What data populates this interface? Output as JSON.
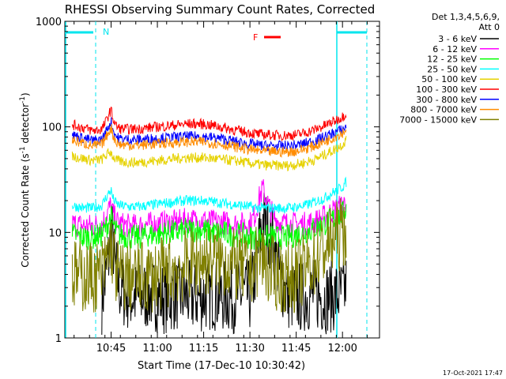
{
  "chart_data": {
    "type": "line",
    "title": "RHESSI Observing Summary Count Rates, Corrected",
    "xlabel": "Start Time (17-Dec-10 10:30:42)",
    "ylabel": "Corrected Count Rate (s",
    "ylabel_sup1": "-1",
    "ylabel_mid": " detector",
    "ylabel_sup2": "-1",
    "ylabel_end": ")",
    "y_scale": "log",
    "ylim": [
      1,
      1000
    ],
    "xlim_minutes": [
      10.5,
      12.2
    ],
    "y_ticks": [
      {
        "value": 1,
        "label": "1"
      },
      {
        "value": 10,
        "label": "10"
      },
      {
        "value": 100,
        "label": "100"
      },
      {
        "value": 1000,
        "label": "1000"
      }
    ],
    "x_ticks": [
      {
        "value": 10.75,
        "label": "10:45"
      },
      {
        "value": 11.0,
        "label": "11:00"
      },
      {
        "value": 11.25,
        "label": "11:15"
      },
      {
        "value": 11.5,
        "label": "11:30"
      },
      {
        "value": 11.75,
        "label": "11:45"
      },
      {
        "value": 12.0,
        "label": "12:00"
      }
    ],
    "legend_title_1": "Det 1,3,4,5,6,9,",
    "legend_title_2": "Att 0",
    "legend_position": "right",
    "annotations": {
      "night_label": "N",
      "flare_label": "F",
      "flare_color": "#ff0000",
      "night_color": "#00e5ee"
    },
    "footer_timestamp": "17-Oct-2021 17:47",
    "series": [
      {
        "name": "3 - 6 keV",
        "color": "#000000",
        "x": [
          10.7,
          10.72,
          10.74,
          10.75,
          10.76,
          10.77,
          10.8,
          10.85,
          10.9,
          10.95,
          11.0,
          11.05,
          11.1,
          11.15,
          11.2,
          11.25,
          11.3,
          11.35,
          11.4,
          11.45,
          11.5,
          11.52,
          11.55,
          11.57,
          11.6,
          11.63,
          11.66,
          11.7,
          11.75,
          11.8,
          11.85,
          11.9,
          11.95,
          12.0,
          12.02
        ],
        "y": [
          2.4,
          3.5,
          6.5,
          10,
          8.5,
          5,
          2.8,
          2.5,
          2.4,
          2.6,
          2.5,
          2.4,
          2.6,
          2.5,
          2.4,
          2.5,
          2.6,
          2.5,
          2.4,
          2.6,
          2.5,
          3.5,
          8,
          13,
          11,
          7,
          4,
          2.6,
          2.4,
          2.5,
          2.6,
          2.4,
          2.5,
          2.6,
          3
        ]
      },
      {
        "name": "6 - 12 keV",
        "color": "#ff00ff",
        "x": [
          10.54,
          10.6,
          10.65,
          10.7,
          10.72,
          10.74,
          10.75,
          10.76,
          10.78,
          10.8,
          10.85,
          10.9,
          10.95,
          11.0,
          11.05,
          11.1,
          11.15,
          11.2,
          11.25,
          11.3,
          11.35,
          11.4,
          11.45,
          11.5,
          11.53,
          11.55,
          11.57,
          11.6,
          11.63,
          11.66,
          11.7,
          11.75,
          11.8,
          11.85,
          11.9,
          11.95,
          12.0,
          12.02
        ],
        "y": [
          12,
          11.5,
          11.5,
          12,
          14,
          17,
          18,
          15,
          12.5,
          12,
          11.5,
          11.5,
          12,
          12,
          12.5,
          12.5,
          13,
          13,
          13,
          12.5,
          12.5,
          12,
          12,
          12,
          15,
          21,
          26,
          18,
          14,
          12.5,
          12,
          12,
          12,
          12.5,
          14,
          16,
          18,
          20
        ]
      },
      {
        "name": "12 - 25 keV",
        "color": "#00ff00",
        "x": [
          10.54,
          10.6,
          10.65,
          10.7,
          10.72,
          10.74,
          10.75,
          10.76,
          10.78,
          10.8,
          10.85,
          10.9,
          10.95,
          11.0,
          11.05,
          11.1,
          11.15,
          11.2,
          11.25,
          11.3,
          11.35,
          11.4,
          11.45,
          11.5,
          11.55,
          11.6,
          11.65,
          11.7,
          11.75,
          11.8,
          11.85,
          11.9,
          11.95,
          12.0,
          12.02
        ],
        "y": [
          9.5,
          9,
          9,
          9.5,
          11,
          13,
          14,
          12,
          10,
          9.5,
          9,
          9,
          9.5,
          9.5,
          10,
          10,
          10.5,
          10.5,
          10.5,
          10,
          10,
          9.5,
          9.5,
          9,
          9,
          9,
          9,
          9,
          9.5,
          10,
          11,
          12,
          13.5,
          15,
          17
        ]
      },
      {
        "name": "25 - 50 keV",
        "color": "#00ffff",
        "x": [
          10.54,
          10.6,
          10.65,
          10.7,
          10.72,
          10.74,
          10.75,
          10.76,
          10.78,
          10.8,
          10.85,
          10.9,
          10.95,
          11.0,
          11.05,
          11.1,
          11.15,
          11.2,
          11.25,
          11.3,
          11.35,
          11.4,
          11.45,
          11.5,
          11.55,
          11.6,
          11.65,
          11.7,
          11.75,
          11.8,
          11.85,
          11.9,
          11.95,
          12.0,
          12.02
        ],
        "y": [
          18,
          17,
          17,
          18,
          21,
          24,
          25,
          21,
          18.5,
          18,
          17.5,
          17.5,
          18,
          18.5,
          19,
          19.5,
          20,
          20,
          20,
          19.5,
          19,
          18.5,
          18,
          17.5,
          17,
          17,
          17,
          17,
          17.5,
          18,
          19.5,
          21,
          24,
          27,
          30
        ]
      },
      {
        "name": "50 - 100 keV",
        "color": "#e6d200",
        "x": [
          10.54,
          10.6,
          10.65,
          10.7,
          10.72,
          10.74,
          10.75,
          10.76,
          10.78,
          10.8,
          10.85,
          10.9,
          10.95,
          11.0,
          11.05,
          11.1,
          11.15,
          11.2,
          11.25,
          11.3,
          11.35,
          11.4,
          11.45,
          11.5,
          11.55,
          11.6,
          11.65,
          11.7,
          11.75,
          11.8,
          11.85,
          11.9,
          11.95,
          12.0,
          12.02
        ],
        "y": [
          53,
          50,
          48,
          49,
          53,
          57,
          58,
          52,
          48,
          47,
          46,
          46,
          47,
          48,
          49,
          50,
          51,
          51,
          51,
          50,
          49,
          48,
          47,
          45,
          44,
          43,
          43,
          43,
          44,
          46,
          49,
          54,
          60,
          68,
          75
        ]
      },
      {
        "name": "100 - 300 keV",
        "color": "#ff0000",
        "x": [
          10.54,
          10.6,
          10.65,
          10.7,
          10.72,
          10.74,
          10.75,
          10.76,
          10.78,
          10.8,
          10.85,
          10.9,
          10.95,
          11.0,
          11.05,
          11.1,
          11.15,
          11.2,
          11.25,
          11.3,
          11.35,
          11.4,
          11.45,
          11.5,
          11.55,
          11.6,
          11.65,
          11.7,
          11.75,
          11.8,
          11.85,
          11.9,
          11.95,
          12.0,
          12.02
        ],
        "y": [
          105,
          98,
          92,
          95,
          110,
          135,
          145,
          120,
          100,
          96,
          95,
          96,
          98,
          100,
          102,
          104,
          106,
          107,
          106,
          103,
          99,
          95,
          91,
          88,
          85,
          84,
          83,
          83,
          84,
          88,
          94,
          102,
          112,
          125,
          135
        ]
      },
      {
        "name": "300 - 800 keV",
        "color": "#0000ff",
        "x": [
          10.54,
          10.6,
          10.65,
          10.7,
          10.72,
          10.74,
          10.75,
          10.76,
          10.78,
          10.8,
          10.85,
          10.9,
          10.95,
          11.0,
          11.05,
          11.1,
          11.15,
          11.2,
          11.25,
          11.3,
          11.35,
          11.4,
          11.45,
          11.5,
          11.55,
          11.6,
          11.65,
          11.7,
          11.75,
          11.8,
          11.85,
          11.9,
          11.95,
          12.0,
          12.02
        ],
        "y": [
          84,
          78,
          74,
          76,
          88,
          105,
          112,
          94,
          80,
          77,
          76,
          76,
          77,
          78,
          79,
          80,
          81,
          81,
          81,
          79,
          77,
          74,
          71,
          69,
          67,
          66,
          66,
          66,
          67,
          70,
          74,
          80,
          87,
          95,
          100
        ]
      },
      {
        "name": "800 - 7000 keV",
        "color": "#ff8c00",
        "x": [
          10.54,
          10.6,
          10.65,
          10.7,
          10.72,
          10.74,
          10.75,
          10.76,
          10.78,
          10.8,
          10.85,
          10.9,
          10.95,
          11.0,
          11.05,
          11.1,
          11.15,
          11.2,
          11.25,
          11.3,
          11.35,
          11.4,
          11.45,
          11.5,
          11.55,
          11.6,
          11.65,
          11.7,
          11.75,
          11.8,
          11.85,
          11.9,
          11.95,
          12.0,
          12.02
        ],
        "y": [
          75,
          70,
          66,
          68,
          78,
          92,
          98,
          83,
          71,
          68,
          67,
          67,
          68,
          69,
          70,
          71,
          72,
          72,
          72,
          70,
          68,
          66,
          63,
          61,
          59,
          58,
          58,
          58,
          59,
          62,
          66,
          72,
          79,
          88,
          95
        ]
      },
      {
        "name": "7000 - 15000 keV",
        "color": "#808000",
        "x": [
          10.54,
          10.6,
          10.65,
          10.7,
          10.72,
          10.74,
          10.75,
          10.76,
          10.78,
          10.8,
          10.85,
          10.9,
          10.95,
          11.0,
          11.05,
          11.1,
          11.15,
          11.2,
          11.25,
          11.3,
          11.35,
          11.4,
          11.45,
          11.5,
          11.53,
          11.55,
          11.58,
          11.6,
          11.65,
          11.7,
          11.75,
          11.8,
          11.85,
          11.9,
          11.95,
          12.0,
          12.02
        ],
        "y": [
          4,
          3.8,
          3.8,
          4,
          5,
          7,
          8,
          6,
          4.3,
          3.8,
          3.8,
          3.7,
          3.8,
          3.9,
          4.2,
          4.5,
          4.8,
          5.2,
          5.5,
          5.5,
          5.3,
          5,
          4.6,
          4.4,
          5,
          6,
          5.5,
          4.4,
          3.9,
          3.7,
          3.9,
          4.5,
          5.5,
          7,
          8.5,
          10,
          11
        ]
      }
    ]
  }
}
